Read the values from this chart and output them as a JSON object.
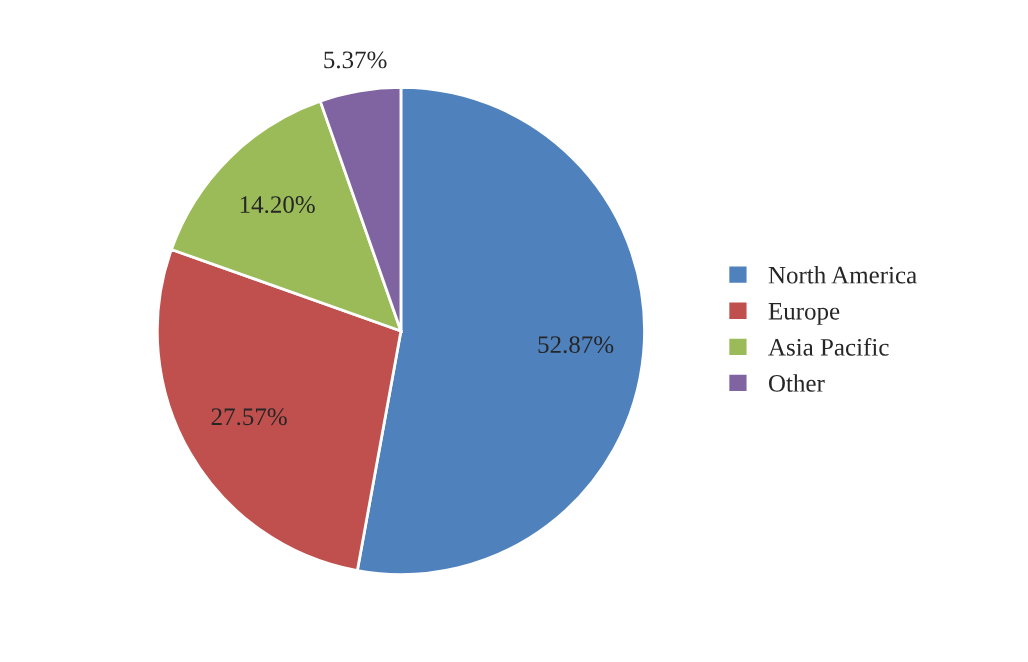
{
  "chart_data": {
    "type": "pie",
    "categories": [
      "North America",
      "Europe",
      "Asia Pacific",
      "Other"
    ],
    "values": [
      52.87,
      27.57,
      14.2,
      5.37
    ],
    "value_labels": [
      "52.87%",
      "27.57%",
      "14.20%",
      "5.37%"
    ],
    "colors": [
      "#4f81bd",
      "#c0504d",
      "#9bbb59",
      "#8064a2"
    ],
    "legend": "right"
  }
}
